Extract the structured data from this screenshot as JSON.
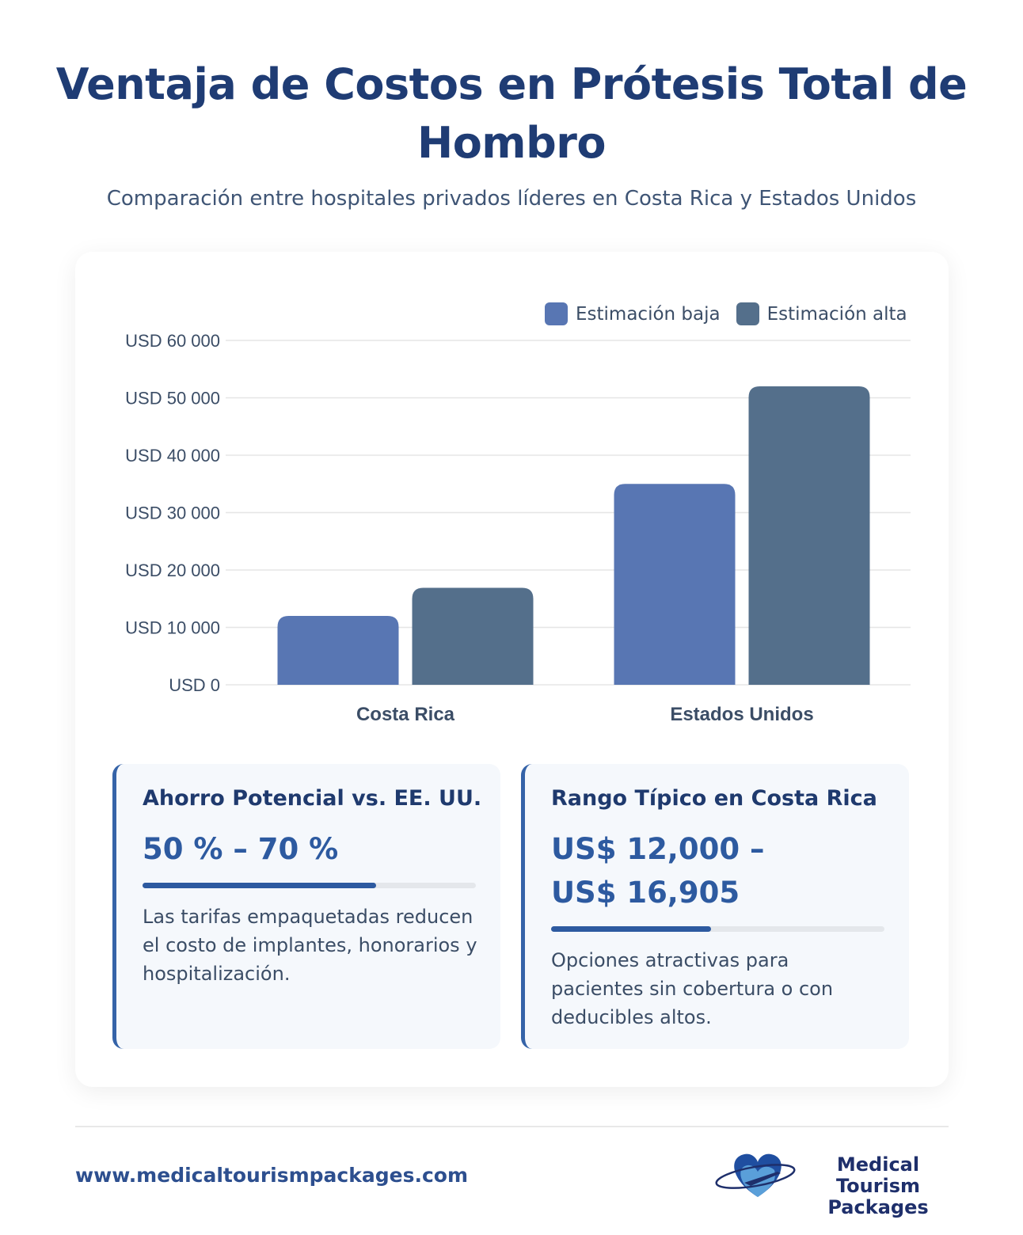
{
  "title": "Ventaja de Costos en Prótesis Total de Hombro",
  "subtitle": "Comparación entre hospitales privados líderes en Costa Rica y Estados Unidos",
  "chart_data": {
    "type": "bar",
    "categories": [
      "Costa Rica",
      "Estados Unidos"
    ],
    "series": [
      {
        "name": "Estimación baja",
        "values": [
          12000,
          35000
        ],
        "color": "#5876b3"
      },
      {
        "name": "Estimación alta",
        "values": [
          16905,
          52000
        ],
        "color": "#546f8b"
      }
    ],
    "ylim": [
      0,
      60000
    ],
    "yticks": [
      0,
      10000,
      20000,
      30000,
      40000,
      50000,
      60000
    ],
    "ytick_labels": [
      "USD 0",
      "USD 10 000",
      "USD 20 000",
      "USD 30 000",
      "USD 40 000",
      "USD 50 000",
      "USD 60 000"
    ],
    "grid": true,
    "legend": "top-right"
  },
  "cards": [
    {
      "title": "Ahorro Potencial vs. EE. UU.",
      "value": "50 % – 70 %",
      "progress": 0.7,
      "text": "Las tarifas empaquetadas reducen el costo de implantes, honorarios y hospitalización."
    },
    {
      "title": "Rango Típico en Costa Rica",
      "value": "US$ 12,000 – US$ 16,905",
      "progress": 0.48,
      "text": "Opciones atractivas para pacientes sin cobertura o con deducibles altos."
    }
  ],
  "footer": {
    "url": "www.medicaltourismpackages.com",
    "logo": "Medical Tourism Packages",
    "logo_icon": "heart-airplane-icon"
  }
}
